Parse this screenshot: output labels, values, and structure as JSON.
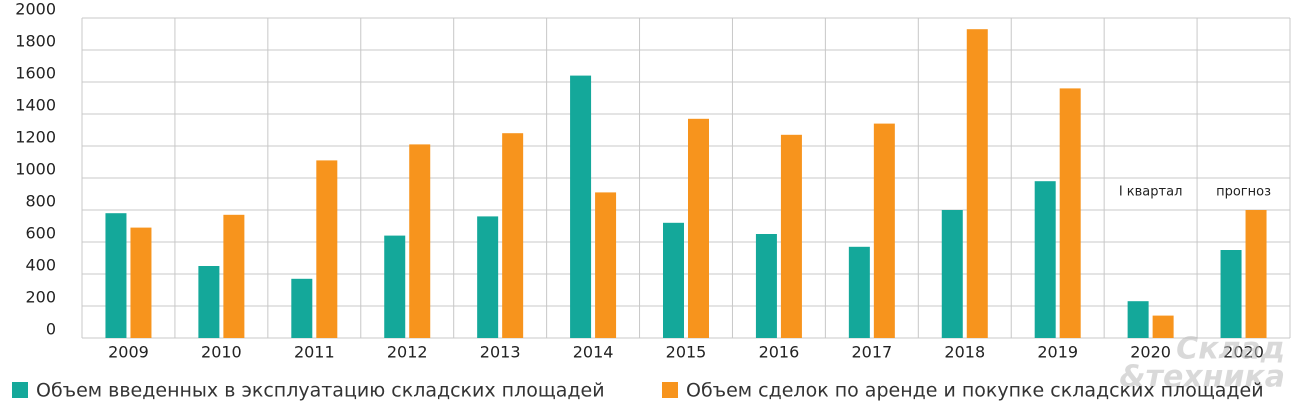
{
  "chart_data": {
    "type": "bar",
    "categories": [
      "2009",
      "2010",
      "2011",
      "2012",
      "2013",
      "2014",
      "2015",
      "2016",
      "2017",
      "2018",
      "2019",
      "2020",
      "2020"
    ],
    "series": [
      {
        "name": "Объем введенных в эксплуатацию складских площадей",
        "color": "#14a89a",
        "values": [
          780,
          450,
          370,
          640,
          760,
          1640,
          720,
          650,
          570,
          800,
          980,
          230,
          550
        ]
      },
      {
        "name": "Объем сделок по аренде и покупке складских площадей",
        "color": "#f7941d",
        "values": [
          690,
          770,
          1110,
          1210,
          1280,
          910,
          1370,
          1270,
          1340,
          1930,
          1560,
          140,
          800
        ]
      }
    ],
    "annotations": [
      "I квартал",
      "прогноз"
    ],
    "watermark": [
      "Склад",
      "&техника"
    ],
    "ylim": [
      0,
      2000
    ],
    "yticks": [
      0,
      200,
      400,
      600,
      800,
      1000,
      1200,
      1400,
      1600,
      1800,
      2000
    ],
    "grid": true
  }
}
